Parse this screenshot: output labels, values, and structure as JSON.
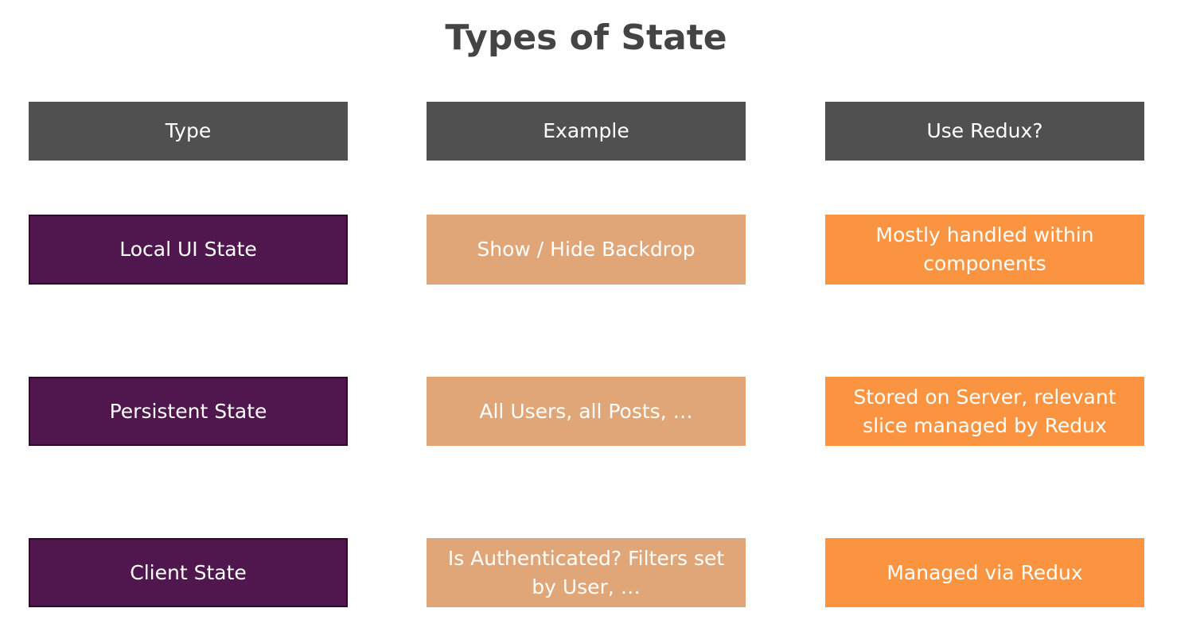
{
  "title": "Types of State",
  "headers": {
    "type": "Type",
    "example": "Example",
    "use_redux": "Use Redux?"
  },
  "rows": [
    {
      "type": "Local UI State",
      "example": "Show / Hide Backdrop",
      "use_redux": "Mostly handled within components"
    },
    {
      "type": "Persistent State",
      "example": "All Users, all Posts, …",
      "use_redux": "Stored on Server, relevant slice managed by Redux"
    },
    {
      "type": "Client State",
      "example": "Is Authenticated? Filters set by User, …",
      "use_redux": "Managed via Redux"
    }
  ],
  "colors": {
    "header": "#505050",
    "type": "#4f174d",
    "example": "#e0a678",
    "use_redux": "#fa9441",
    "title": "#444444"
  }
}
